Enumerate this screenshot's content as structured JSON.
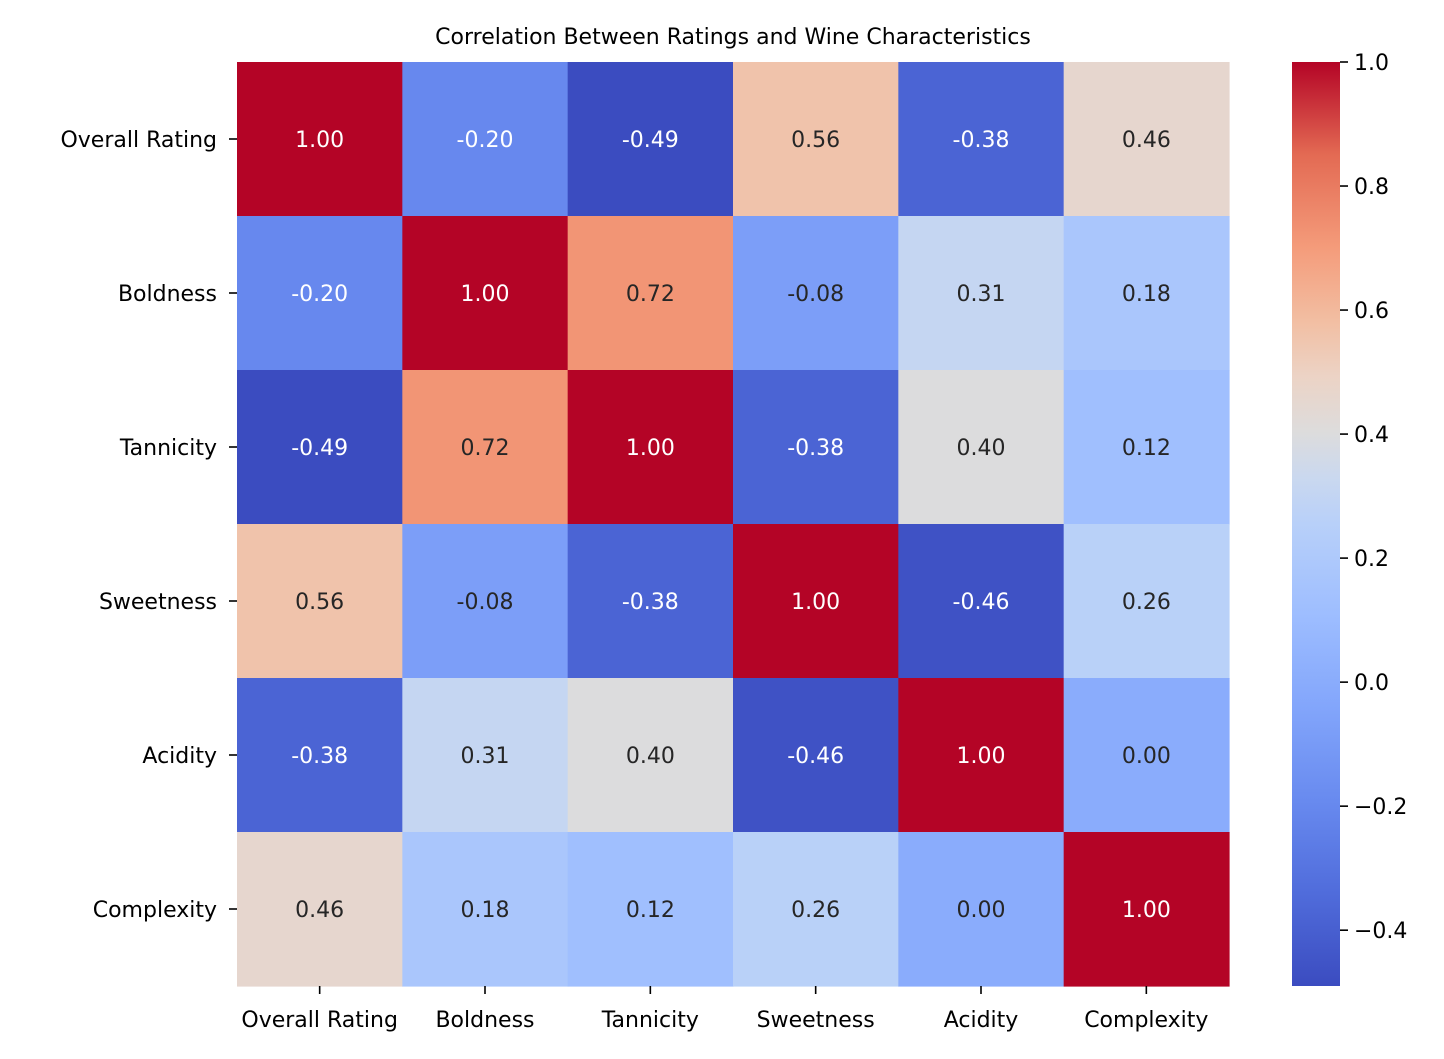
{
  "chart_data": {
    "type": "heatmap",
    "title": "Correlation Between Ratings and Wine Characteristics",
    "xlabel": "",
    "ylabel": "",
    "x_categories": [
      "Overall Rating",
      "Boldness",
      "Tannicity",
      "Sweetness",
      "Acidity",
      "Complexity"
    ],
    "y_categories": [
      "Overall Rating",
      "Boldness",
      "Tannicity",
      "Sweetness",
      "Acidity",
      "Complexity"
    ],
    "values": [
      [
        1.0,
        -0.2,
        -0.49,
        0.56,
        -0.38,
        0.46
      ],
      [
        -0.2,
        1.0,
        0.72,
        -0.08,
        0.31,
        0.18
      ],
      [
        -0.49,
        0.72,
        1.0,
        -0.38,
        0.4,
        0.12
      ],
      [
        0.56,
        -0.08,
        -0.38,
        1.0,
        -0.46,
        0.26
      ],
      [
        -0.38,
        0.31,
        0.4,
        -0.46,
        1.0,
        0.0
      ],
      [
        0.46,
        0.18,
        0.12,
        0.26,
        0.0,
        1.0
      ]
    ],
    "annotation_format": "0.00",
    "colormap": "coolwarm",
    "colorbar": {
      "range": [
        -0.49,
        1.0
      ],
      "ticks": [
        -0.4,
        -0.2,
        0.0,
        0.2,
        0.4,
        0.6,
        0.8,
        1.0
      ],
      "tick_labels": [
        "−0.4",
        "−0.2",
        "0.0",
        "0.2",
        "0.4",
        "0.6",
        "0.8",
        "1.0"
      ],
      "placement": "right"
    },
    "grid": false
  }
}
